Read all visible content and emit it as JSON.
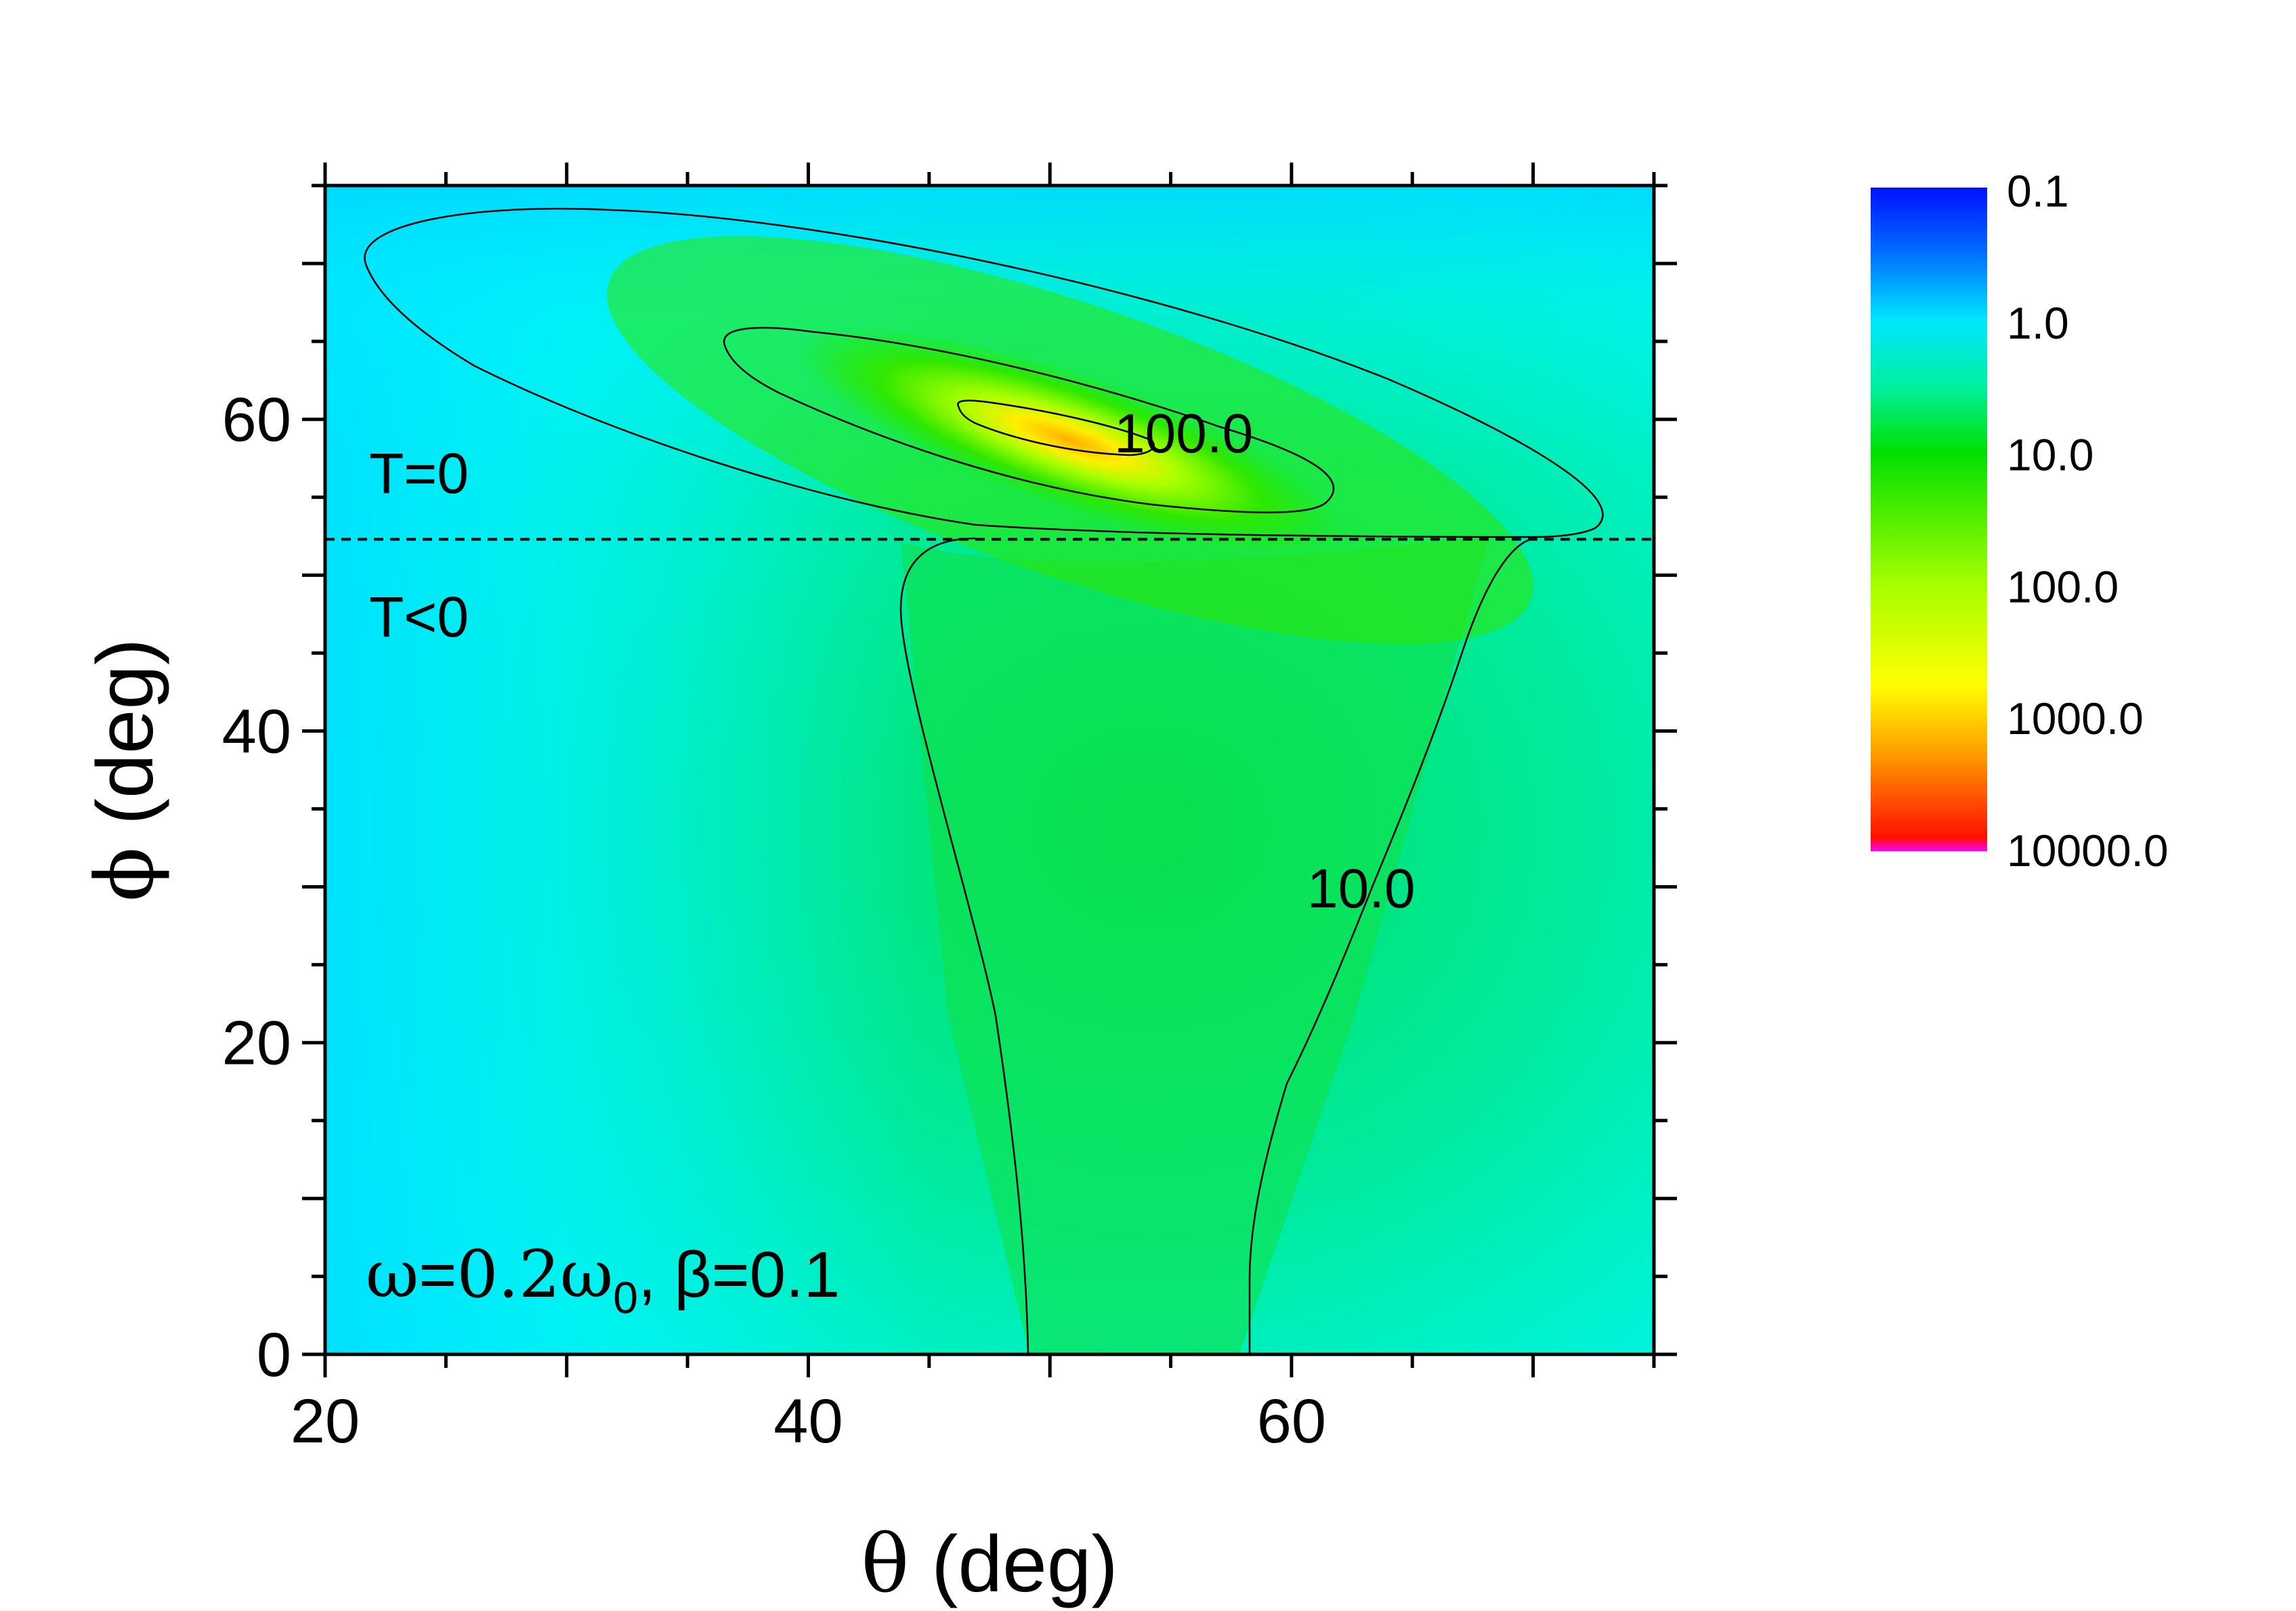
{
  "chart_data": {
    "type": "heatmap",
    "x_label": {
      "symbol": "θ",
      "text": " (deg)"
    },
    "y_label": {
      "symbol": "ϕ",
      "text": " (deg)"
    },
    "xlim": [
      20,
      75
    ],
    "ylim": [
      0,
      75
    ],
    "x_ticks": [
      "20",
      "40",
      "60"
    ],
    "y_ticks": [
      "0",
      "20",
      "40",
      "60"
    ],
    "x_tick_values": [
      20,
      40,
      60
    ],
    "y_tick_values": [
      0,
      20,
      40,
      60
    ],
    "colorbar": {
      "scale": "log",
      "labels": [
        "0.1",
        "1.0",
        "10.0",
        "100.0",
        "1000.0",
        "10000.0"
      ],
      "colors": [
        "#0010ff",
        "#00e6ff",
        "#00e000",
        "#a8ff00",
        "#ffff00",
        "#ff0000"
      ]
    },
    "contours": [
      {
        "level": 10,
        "label": "10.0"
      },
      {
        "level": 100,
        "label": "100.0"
      },
      {
        "level": 1000,
        "label": ""
      }
    ],
    "boundary": {
      "phi": 52.3,
      "style": "dashed"
    },
    "region_labels": {
      "above": "T=0",
      "below": "T<0"
    },
    "parameters": {
      "omega_sym": "ω",
      "equals": "=",
      "omega_coef": "0.2ω",
      "omega_sub": "0",
      "beta_part": ", β=0.1"
    },
    "peak": {
      "theta": 50,
      "phi": 59.5,
      "value": 1200
    }
  }
}
